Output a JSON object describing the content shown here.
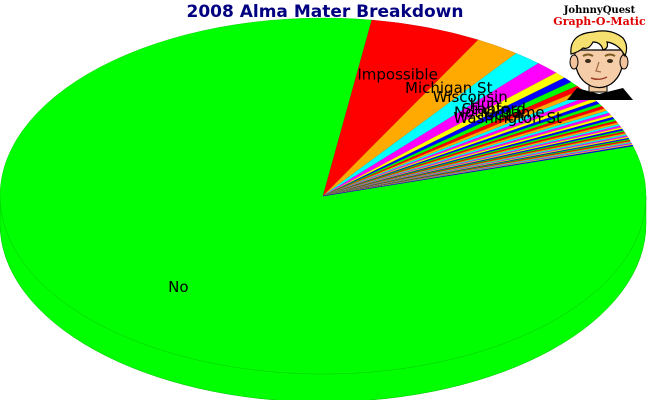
{
  "chart_data": {
    "type": "pie",
    "title": "2008 Alma Mater Breakdown",
    "style": "3d",
    "slices": [
      {
        "label": "No",
        "value": 81.0,
        "color": "#00ff00"
      },
      {
        "label": "Impossible",
        "value": 5.5,
        "color": "#ff0000"
      },
      {
        "label": "Michigan St",
        "value": 2.2,
        "color": "#ffaa00"
      },
      {
        "label": "Wisconsin",
        "value": 1.4,
        "color": "#00ffff"
      },
      {
        "label": "Huh",
        "value": 1.2,
        "color": "#ff00ff"
      },
      {
        "label": "Stanford",
        "value": 0.6,
        "color": "#ffff00"
      },
      {
        "label": "Notre Dame",
        "value": 0.5,
        "color": "#0000ff"
      },
      {
        "label": "UCLA",
        "value": 0.45,
        "color": "#00ff00"
      },
      {
        "label": "Washington St",
        "value": 0.4,
        "color": "#ff0000"
      },
      {
        "label": "",
        "value": 0.35,
        "color": "#ffaa00"
      },
      {
        "label": "",
        "value": 0.32,
        "color": "#00ffff"
      },
      {
        "label": "",
        "value": 0.3,
        "color": "#ff00ff"
      },
      {
        "label": "",
        "value": 0.28,
        "color": "#ffff00"
      },
      {
        "label": "",
        "value": 0.26,
        "color": "#0000ff"
      },
      {
        "label": "",
        "value": 0.25,
        "color": "#00ff00"
      },
      {
        "label": "",
        "value": 0.24,
        "color": "#ff0000"
      },
      {
        "label": "",
        "value": 0.23,
        "color": "#ffaa00"
      },
      {
        "label": "",
        "value": 0.22,
        "color": "#00ffff"
      },
      {
        "label": "",
        "value": 0.21,
        "color": "#ff00ff"
      },
      {
        "label": "",
        "value": 0.2,
        "color": "#ffff00"
      },
      {
        "label": "",
        "value": 0.19,
        "color": "#0000ff"
      },
      {
        "label": "",
        "value": 0.18,
        "color": "#00ff00"
      },
      {
        "label": "",
        "value": 0.17,
        "color": "#ff0000"
      },
      {
        "label": "",
        "value": 0.16,
        "color": "#ffaa00"
      },
      {
        "label": "",
        "value": 0.15,
        "color": "#00ffff"
      },
      {
        "label": "",
        "value": 0.15,
        "color": "#ff00ff"
      },
      {
        "label": "",
        "value": 0.14,
        "color": "#ffff00"
      },
      {
        "label": "",
        "value": 0.14,
        "color": "#0000ff"
      },
      {
        "label": "",
        "value": 0.13,
        "color": "#00ff00"
      },
      {
        "label": "",
        "value": 0.13,
        "color": "#ff0000"
      },
      {
        "label": "",
        "value": 0.12,
        "color": "#ffaa00"
      },
      {
        "label": "",
        "value": 0.12,
        "color": "#00ffff"
      },
      {
        "label": "",
        "value": 0.11,
        "color": "#ff00ff"
      },
      {
        "label": "",
        "value": 0.11,
        "color": "#ffff00"
      },
      {
        "label": "",
        "value": 0.1,
        "color": "#0000ff"
      },
      {
        "label": "",
        "value": 0.1,
        "color": "#00ff00"
      },
      {
        "label": "",
        "value": 0.1,
        "color": "#ff0000"
      },
      {
        "label": "",
        "value": 0.09,
        "color": "#ffaa00"
      },
      {
        "label": "",
        "value": 0.09,
        "color": "#00ffff"
      },
      {
        "label": "",
        "value": 0.09,
        "color": "#ff00ff"
      },
      {
        "label": "",
        "value": 0.08,
        "color": "#ffff00"
      },
      {
        "label": "",
        "value": 0.08,
        "color": "#0000ff"
      }
    ],
    "legend": "none"
  },
  "logo": {
    "line1": "JohnnyQuest",
    "line2": "Graph-O-Matic",
    "icon": "cartoon-boy-face-icon"
  }
}
